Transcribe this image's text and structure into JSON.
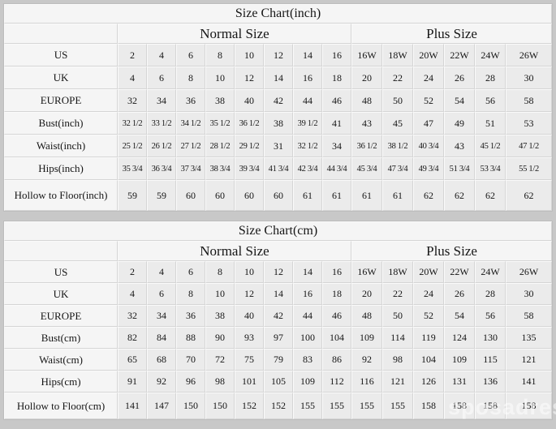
{
  "page": {
    "watermark": "sposadresses",
    "background_color": "#c8c8c8",
    "table_surface_color": "#f0f0f0",
    "cell_color": "#ebebeb",
    "header_color": "#f5f5f5"
  },
  "chart_data": [
    {
      "type": "table",
      "title": "Size Chart(inch)",
      "column_groups": [
        {
          "label": "Normal Size",
          "columns": 8
        },
        {
          "label": "Plus Size",
          "columns": 6
        }
      ],
      "rows": [
        {
          "label": "US",
          "values": [
            "2",
            "4",
            "6",
            "8",
            "10",
            "12",
            "14",
            "16",
            "16W",
            "18W",
            "20W",
            "22W",
            "24W",
            "26W"
          ]
        },
        {
          "label": "UK",
          "values": [
            "4",
            "6",
            "8",
            "10",
            "12",
            "14",
            "16",
            "18",
            "20",
            "22",
            "24",
            "26",
            "28",
            "30"
          ]
        },
        {
          "label": "EUROPE",
          "values": [
            "32",
            "34",
            "36",
            "38",
            "40",
            "42",
            "44",
            "46",
            "48",
            "50",
            "52",
            "54",
            "56",
            "58"
          ]
        },
        {
          "label": "Bust(inch)",
          "values": [
            "32 1/2",
            "33 1/2",
            "34 1/2",
            "35 1/2",
            "36 1/2",
            "38",
            "39 1/2",
            "41",
            "43",
            "45",
            "47",
            "49",
            "51",
            "53"
          ]
        },
        {
          "label": "Waist(inch)",
          "values": [
            "25 1/2",
            "26 1/2",
            "27 1/2",
            "28 1/2",
            "29 1/2",
            "31",
            "32 1/2",
            "34",
            "36 1/2",
            "38 1/2",
            "40 3/4",
            "43",
            "45 1/2",
            "47 1/2"
          ]
        },
        {
          "label": "Hips(inch)",
          "values": [
            "35 3/4",
            "36 3/4",
            "37 3/4",
            "38 3/4",
            "39 3/4",
            "41 3/4",
            "42 3/4",
            "44 3/4",
            "45 3/4",
            "47 3/4",
            "49 3/4",
            "51 3/4",
            "53 3/4",
            "55 1/2"
          ]
        },
        {
          "label": "Hollow to Floor(inch)",
          "values": [
            "59",
            "59",
            "60",
            "60",
            "60",
            "60",
            "61",
            "61",
            "61",
            "61",
            "62",
            "62",
            "62",
            "62"
          ]
        }
      ]
    },
    {
      "type": "table",
      "title": "Size Chart(cm)",
      "column_groups": [
        {
          "label": "Normal Size",
          "columns": 8
        },
        {
          "label": "Plus Size",
          "columns": 6
        }
      ],
      "rows": [
        {
          "label": "US",
          "values": [
            "2",
            "4",
            "6",
            "8",
            "10",
            "12",
            "14",
            "16",
            "16W",
            "18W",
            "20W",
            "22W",
            "24W",
            "26W"
          ]
        },
        {
          "label": "UK",
          "values": [
            "4",
            "6",
            "8",
            "10",
            "12",
            "14",
            "16",
            "18",
            "20",
            "22",
            "24",
            "26",
            "28",
            "30"
          ]
        },
        {
          "label": "EUROPE",
          "values": [
            "32",
            "34",
            "36",
            "38",
            "40",
            "42",
            "44",
            "46",
            "48",
            "50",
            "52",
            "54",
            "56",
            "58"
          ]
        },
        {
          "label": "Bust(cm)",
          "values": [
            "82",
            "84",
            "88",
            "90",
            "93",
            "97",
            "100",
            "104",
            "109",
            "114",
            "119",
            "124",
            "130",
            "135"
          ]
        },
        {
          "label": "Waist(cm)",
          "values": [
            "65",
            "68",
            "70",
            "72",
            "75",
            "79",
            "83",
            "86",
            "92",
            "98",
            "104",
            "109",
            "115",
            "121"
          ]
        },
        {
          "label": "Hips(cm)",
          "values": [
            "91",
            "92",
            "96",
            "98",
            "101",
            "105",
            "109",
            "112",
            "116",
            "121",
            "126",
            "131",
            "136",
            "141"
          ]
        },
        {
          "label": "Hollow to Floor(cm)",
          "values": [
            "141",
            "147",
            "150",
            "150",
            "152",
            "152",
            "155",
            "155",
            "155",
            "155",
            "158",
            "158",
            "158",
            "158"
          ]
        }
      ]
    }
  ]
}
